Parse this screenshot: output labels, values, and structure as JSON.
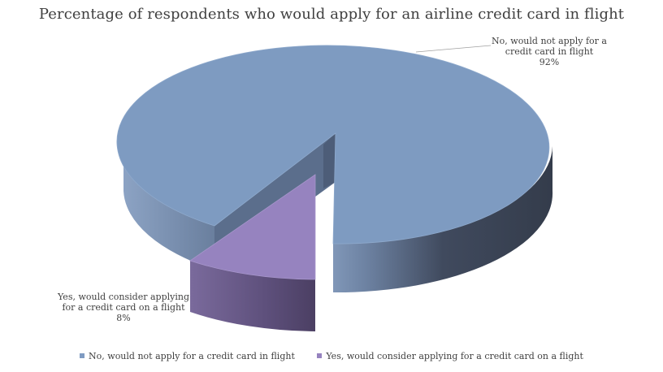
{
  "chart_data": {
    "type": "pie",
    "title": "Percentage of respondents who would apply for an airline credit card in flight",
    "legend_position": "bottom",
    "explode": true,
    "three_d": true,
    "slices": [
      {
        "name": "No, would not apply for a credit card in flight",
        "value": 92,
        "label_line1": "No, would not apply for a",
        "label_line2": "credit card in flight",
        "value_label": "92%",
        "color": "#7F9BC2"
      },
      {
        "name": "Yes, would consider applying for a credit card on a flight",
        "value": 8,
        "label_line1": "Yes, would consider applying",
        "label_line2": "for a credit card on a flight",
        "value_label": "8%",
        "color": "#9683BF"
      }
    ]
  }
}
